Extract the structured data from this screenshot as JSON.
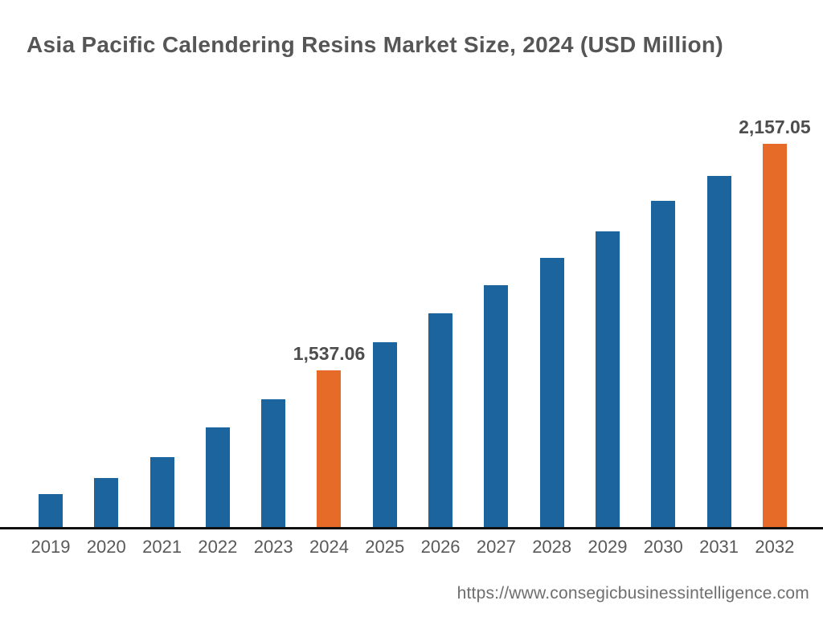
{
  "header": {
    "title": "Asia Pacific Calendering Resins Market Size, 2024 (USD Million)"
  },
  "footer": {
    "source_url": "https://www.consegicbusinessintelligence.com"
  },
  "chart_data": {
    "type": "bar",
    "title": "Asia Pacific Calendering Resins Market Size, 2024 (USD Million)",
    "xlabel": "",
    "ylabel": "",
    "value_unit": "USD Million",
    "categories": [
      "2019",
      "2020",
      "2021",
      "2022",
      "2023",
      "2024",
      "2025",
      "2026",
      "2027",
      "2028",
      "2029",
      "2030",
      "2031",
      "2032"
    ],
    "values": [
      1200,
      1244,
      1301,
      1382,
      1459,
      1537.06,
      1615,
      1694,
      1770,
      1845,
      1917,
      2001,
      2069,
      2157.05
    ],
    "labeled_points": [
      {
        "category": "2024",
        "label": "1,537.06"
      },
      {
        "category": "2032",
        "label": "2,157.05"
      }
    ],
    "highlight_indices": [
      5,
      13
    ],
    "ylim": [
      1110,
      2350
    ],
    "grid": false,
    "legend": false,
    "y_axis_visible": false,
    "colors": {
      "bar_default": "#1C649D",
      "bar_highlight": "#E66B28",
      "axis_line": "#101010",
      "title_text": "#565656",
      "data_label_text": "#4D4D4D",
      "tick_label_text": "#595959",
      "footer_text": "#6E6E6E"
    }
  }
}
